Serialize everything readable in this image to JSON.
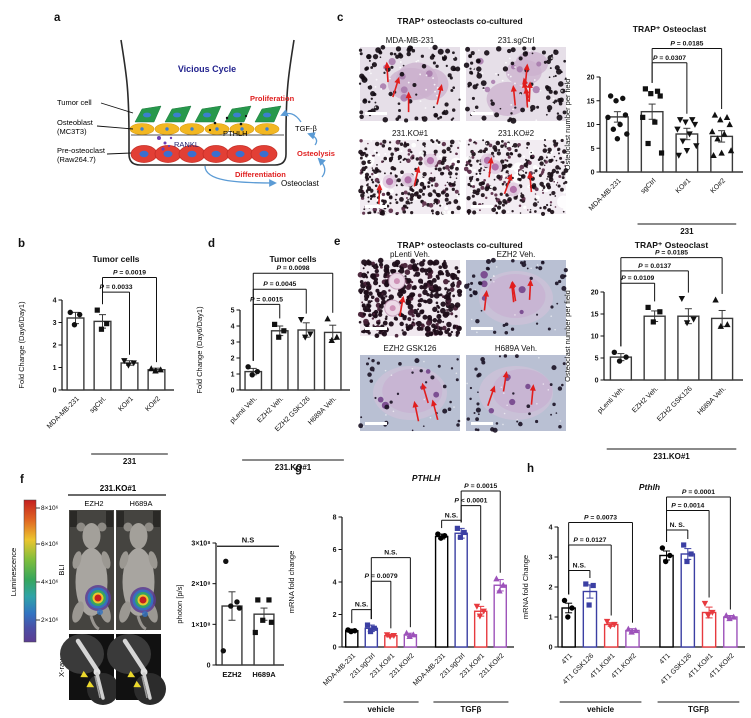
{
  "panels": {
    "a": {
      "label": "a",
      "diagram": {
        "vicious_cycle": "Vicious Cycle",
        "tumor_cell": "Tumor cell",
        "osteoblast_line1": "Osteoblast",
        "osteoblast_line2": "(MC3T3)",
        "pre_osteoclast_line1": "Pre-osteoclast",
        "pre_osteoclast_line2": "(Raw264.7)",
        "rankl": "RANKL",
        "pthlh": "PTHLH",
        "proliferation": "Proliferation",
        "tgf_beta": "TGF-β",
        "osteolysis": "Osteolysis",
        "differentiation": "Differentiation",
        "osteoclast": "Osteoclast",
        "colors": {
          "cycle_text": "#23238e",
          "process_text": "#e02020",
          "arrow": "#5b9bd5",
          "tumor_cell_fill": "#27984c",
          "osteoblast_fill": "#f2b722",
          "preosteoclast_fill": "#e23f35"
        }
      }
    },
    "b": {
      "label": "b"
    },
    "c": {
      "label": "c",
      "images_title": "TRAP⁺ osteoclasts co-cultured",
      "images": [
        {
          "label": "MDA-MB-231",
          "style": "light",
          "arrows": 4
        },
        {
          "label": "231.sgCtrl",
          "style": "light",
          "arrows": 6
        },
        {
          "label": "231.KO#1",
          "style": "speckle",
          "arrows": 2
        },
        {
          "label": "231.KO#2",
          "style": "speckle",
          "arrows": 3
        }
      ]
    },
    "d": {
      "label": "d"
    },
    "e": {
      "label": "e",
      "images_title": "TRAP⁺ osteoclasts co-cultured",
      "images": [
        {
          "label": "pLenti Veh.",
          "style": "dark",
          "arrows": 1
        },
        {
          "label": "EZH2 Veh.",
          "style": "lavender",
          "arrows": 4
        },
        {
          "label": "EZH2 GSK126",
          "style": "lavender",
          "arrows": 3
        },
        {
          "label": "H689A Veh.",
          "style": "lavender",
          "arrows": 3
        }
      ]
    },
    "f": {
      "label": "f",
      "header": "231.KO#1",
      "columns": [
        "EZH2",
        "H689A"
      ],
      "rows": [
        "BLI",
        "X-ray"
      ],
      "colorbar": {
        "label": "Luminescence",
        "ticks": [
          "8×10⁶",
          "6×10⁶",
          "4×10⁶",
          "2×10⁶"
        ]
      }
    },
    "g": {
      "label": "g"
    },
    "h": {
      "label": "h"
    }
  },
  "chart_data": [
    {
      "id": "b",
      "type": "bar",
      "title": "Tumor cells",
      "title_italic": false,
      "ylabel": "Fold Change (Day6/Day1)",
      "ylim": [
        0,
        4
      ],
      "yticks": [
        0,
        1,
        2,
        3,
        4
      ],
      "categories": [
        "MDA-MB-231",
        "sgCtrl.",
        "KO#1",
        "KO#2"
      ],
      "values": [
        3.2,
        3.05,
        1.2,
        0.9
      ],
      "errors": [
        0.25,
        0.3,
        0.1,
        0.07
      ],
      "points": [
        [
          3.45,
          3.35,
          2.9
        ],
        [
          3.55,
          2.95,
          2.7
        ],
        [
          1.3,
          1.2,
          1.1
        ],
        [
          0.95,
          0.9,
          0.85
        ]
      ],
      "markers": [
        "circle",
        "square",
        "tri_down",
        "tri_up"
      ],
      "colors": [
        "#3a3a3a",
        "#3a3a3a",
        "#3a3a3a",
        "#3a3a3a"
      ],
      "brackets": [
        {
          "from": 1,
          "to": 3,
          "label": "P = 0.0019",
          "y": 5.0
        },
        {
          "from": 1,
          "to": 2,
          "label": "P = 0.0033",
          "y": 4.35
        }
      ],
      "xgroups": [
        {
          "from": 1,
          "to": 3,
          "label": "231"
        }
      ]
    },
    {
      "id": "c",
      "type": "bar",
      "title": "TRAP⁺ Osteoclast",
      "title_italic": false,
      "ylabel": "Osteoclast number per field",
      "ylim": [
        0,
        20
      ],
      "yticks": [
        0,
        5,
        10,
        15,
        20
      ],
      "categories": [
        "MDA-MB-231",
        "sgCtrl",
        "KO#1",
        "KO#2"
      ],
      "values": [
        11.6,
        12.7,
        8.0,
        7.5
      ],
      "errors": [
        1.1,
        1.6,
        1.2,
        1.2
      ],
      "points": [
        [
          16,
          15.5,
          15,
          12,
          11.5,
          10,
          9,
          8,
          7
        ],
        [
          17.5,
          17,
          16.5,
          16,
          11.5,
          10.5,
          6,
          4
        ],
        [
          11,
          11,
          10.5,
          10,
          9,
          8,
          6.5,
          5.5,
          4.5,
          3.5
        ],
        [
          12,
          11.5,
          11,
          10,
          8.5,
          8,
          7,
          4.5,
          4,
          3.5
        ]
      ],
      "markers": [
        "circle",
        "square",
        "tri_down",
        "tri_up"
      ],
      "colors": [
        "#3a3a3a",
        "#3a3a3a",
        "#3a3a3a",
        "#3a3a3a"
      ],
      "brackets": [
        {
          "from": 1,
          "to": 3,
          "label": "P = 0.0185",
          "y": 26
        },
        {
          "from": 1,
          "to": 2,
          "label": "P = 0.0307",
          "y": 23
        }
      ],
      "xgroups": [
        {
          "from": 1,
          "to": 3,
          "label": "231"
        }
      ]
    },
    {
      "id": "d",
      "type": "bar",
      "title": "Tumor cells",
      "title_italic": false,
      "ylabel": "Fold Change (Day6/Day1)",
      "ylim": [
        0,
        5
      ],
      "yticks": [
        0,
        1,
        2,
        3,
        4,
        5
      ],
      "categories": [
        "pLenti Veh.",
        "EZH2 Veh.",
        "EZH2 GSK126",
        "H689A Veh."
      ],
      "values": [
        1.15,
        3.7,
        3.75,
        3.6
      ],
      "errors": [
        0.2,
        0.3,
        0.45,
        0.45
      ],
      "points": [
        [
          1.45,
          1.15,
          0.95
        ],
        [
          4.1,
          3.7,
          3.3
        ],
        [
          4.4,
          3.5,
          3.3
        ],
        [
          4.45,
          3.3,
          3.1
        ]
      ],
      "markers": [
        "circle",
        "square",
        "tri_down",
        "tri_up"
      ],
      "colors": [
        "#3a3a3a",
        "#3a3a3a",
        "#3a3a3a",
        "#3a3a3a"
      ],
      "brackets": [
        {
          "from": 0,
          "to": 1,
          "label": "P = 0.0015",
          "y": 5.35
        },
        {
          "from": 0,
          "to": 2,
          "label": "P = 0.0045",
          "y": 6.3
        },
        {
          "from": 0,
          "to": 3,
          "label": "P = 0.0098",
          "y": 7.3
        }
      ],
      "xgroups": [
        {
          "from": 0,
          "to": 3,
          "label": "231.KO#1"
        }
      ]
    },
    {
      "id": "e",
      "type": "bar",
      "title": "TRAP⁺ Osteoclast",
      "title_italic": false,
      "ylabel": "Osteoclast number per field",
      "ylim": [
        0,
        20
      ],
      "yticks": [
        0,
        5,
        10,
        15,
        20
      ],
      "categories": [
        "pLenti Veh.",
        "EZH2 Veh.",
        "EZH2 GSK126",
        "H689A Veh."
      ],
      "values": [
        5.2,
        14.5,
        14.5,
        14.0
      ],
      "errors": [
        0.8,
        1.2,
        1.7,
        1.8
      ],
      "points": [
        [
          6.3,
          5.2,
          4.3
        ],
        [
          16.5,
          15.5,
          13.2
        ],
        [
          18.5,
          13.8,
          13
        ],
        [
          18.2,
          12.6,
          12.2
        ]
      ],
      "markers": [
        "circle",
        "square",
        "tri_down",
        "tri_up"
      ],
      "colors": [
        "#3a3a3a",
        "#3a3a3a",
        "#3a3a3a",
        "#3a3a3a"
      ],
      "brackets": [
        {
          "from": 0,
          "to": 1,
          "label": "P = 0.0109",
          "y": 22
        },
        {
          "from": 0,
          "to": 2,
          "label": "P = 0.0137",
          "y": 24.8
        },
        {
          "from": 0,
          "to": 3,
          "label": "P = 0.0185",
          "y": 27.8
        }
      ],
      "xgroups": [
        {
          "from": 0,
          "to": 3,
          "label": "231.KO#1"
        }
      ]
    },
    {
      "id": "f",
      "type": "bar",
      "title": "",
      "title_italic": false,
      "ylabel": "photon [p/s]",
      "ylim": [
        0,
        3
      ],
      "yticks": [
        {
          "v": 0,
          "label": "0"
        },
        {
          "v": 1,
          "label": "1×10⁸"
        },
        {
          "v": 2,
          "label": "2×10⁸"
        },
        {
          "v": 3,
          "label": "3×10⁸"
        }
      ],
      "categories": [
        "EZH2",
        "H689A"
      ],
      "values": [
        1.45,
        1.25
      ],
      "errors": [
        0.35,
        0.15
      ],
      "points": [
        [
          2.55,
          1.55,
          1.45,
          1.4,
          0.35
        ],
        [
          1.6,
          1.6,
          1.1,
          1.05,
          0.8
        ]
      ],
      "markers": [
        "circle",
        "square"
      ],
      "colors": [
        "#3a3a3a",
        "#3a3a3a"
      ],
      "brackets": [
        {
          "from": 0,
          "to": 1,
          "label": "N.S",
          "y": 2.92,
          "flat": true
        }
      ],
      "xgroups": []
    },
    {
      "id": "g",
      "type": "bar",
      "title": "PTHLH",
      "title_italic": true,
      "ylabel": "mRNA fold change",
      "ylim": [
        0,
        8
      ],
      "yticks": [
        0,
        2,
        4,
        6,
        8
      ],
      "categories": [
        "MDA-MB-231",
        "231.sgCtrl",
        "231.KO#1",
        "231.KO#2",
        "MDA-MB-231",
        "231.sgCtrl",
        "231.KO#1",
        "231.KO#2"
      ],
      "values": [
        1.0,
        1.15,
        0.7,
        0.75,
        6.8,
        7.0,
        2.2,
        3.8
      ],
      "errors": [
        0.1,
        0.2,
        0.08,
        0.1,
        0.15,
        0.3,
        0.3,
        0.35
      ],
      "points": [
        [
          1.05,
          1.0,
          0.95
        ],
        [
          1.35,
          1.15,
          0.95
        ],
        [
          0.75,
          0.7,
          0.65
        ],
        [
          0.85,
          0.75,
          0.65
        ],
        [
          6.95,
          6.85,
          6.7
        ],
        [
          7.3,
          7.05,
          6.75
        ],
        [
          2.5,
          2.2,
          1.9
        ],
        [
          4.2,
          3.8,
          3.45
        ]
      ],
      "markers": [
        "circle",
        "square",
        "tri_down",
        "tri_up",
        "circle",
        "square",
        "tri_down",
        "tri_up"
      ],
      "colors": [
        "#000000",
        "#3b3fa3",
        "#e73a3f",
        "#9d52ba",
        "#000000",
        "#3b3fa3",
        "#e73a3f",
        "#9d52ba"
      ],
      "brackets": [
        {
          "from": 0,
          "to": 1,
          "label": "N.S.",
          "y": 2.3
        },
        {
          "from": 1,
          "to": 2,
          "label": "P = 0.0079",
          "y": 4.05
        },
        {
          "from": 1,
          "to": 3,
          "label": "N.S.",
          "y": 5.5
        },
        {
          "from": 4,
          "to": 5,
          "label": "N.S.",
          "y": 7.8
        },
        {
          "from": 5,
          "to": 6,
          "label": "P < 0.0001",
          "y": 8.7
        },
        {
          "from": 5,
          "to": 7,
          "label": "P = 0.0015",
          "y": 9.6
        }
      ],
      "xgroups": [
        {
          "from": 0,
          "to": 3,
          "label": "vehicle"
        },
        {
          "from": 4,
          "to": 7,
          "label": "TGFβ"
        }
      ]
    },
    {
      "id": "h",
      "type": "bar",
      "title": "Pthlh",
      "title_italic": true,
      "ylabel": "mRNA fold Change",
      "ylim": [
        0,
        4
      ],
      "yticks": [
        0,
        1,
        2,
        3,
        4
      ],
      "categories": [
        "4T1",
        "4T1 GSK126",
        "4T1.KO#1",
        "4T1.KO#2",
        "4T1",
        "4T1 GSK126",
        "4T1.KO#1",
        "4T1.KO#2"
      ],
      "values": [
        1.3,
        1.85,
        0.75,
        0.55,
        3.05,
        3.1,
        1.15,
        1.0
      ],
      "errors": [
        0.16,
        0.22,
        0.06,
        0.06,
        0.15,
        0.18,
        0.18,
        0.05
      ],
      "points": [
        [
          1.55,
          1.3,
          1.0
        ],
        [
          2.1,
          2.05,
          1.4
        ],
        [
          0.85,
          0.75,
          0.7
        ],
        [
          0.6,
          0.55,
          0.5
        ],
        [
          3.3,
          3.05,
          2.85
        ],
        [
          3.4,
          3.1,
          2.85
        ],
        [
          1.45,
          1.15,
          1.05
        ],
        [
          1.05,
          1.0,
          0.95
        ]
      ],
      "markers": [
        "circle",
        "square",
        "tri_down",
        "tri_up",
        "circle",
        "square",
        "tri_down",
        "tri_up"
      ],
      "colors": [
        "#000000",
        "#3b3fa3",
        "#e73a3f",
        "#9d52ba",
        "#000000",
        "#3b3fa3",
        "#e73a3f",
        "#9d52ba"
      ],
      "brackets": [
        {
          "from": 0,
          "to": 1,
          "label": "N.S.",
          "y": 2.55
        },
        {
          "from": 0,
          "to": 2,
          "label": "P = 0.0127",
          "y": 3.4
        },
        {
          "from": 0,
          "to": 3,
          "label": "P = 0.0073",
          "y": 4.15
        },
        {
          "from": 4,
          "to": 5,
          "label": "N. S.",
          "y": 3.9
        },
        {
          "from": 4,
          "to": 6,
          "label": "P = 0.0014",
          "y": 4.55
        },
        {
          "from": 4,
          "to": 7,
          "label": "P = 0.0001",
          "y": 5.0
        }
      ],
      "xgroups": [
        {
          "from": 0,
          "to": 3,
          "label": "vehicle"
        },
        {
          "from": 4,
          "to": 7,
          "label": "TGFβ"
        }
      ]
    }
  ]
}
